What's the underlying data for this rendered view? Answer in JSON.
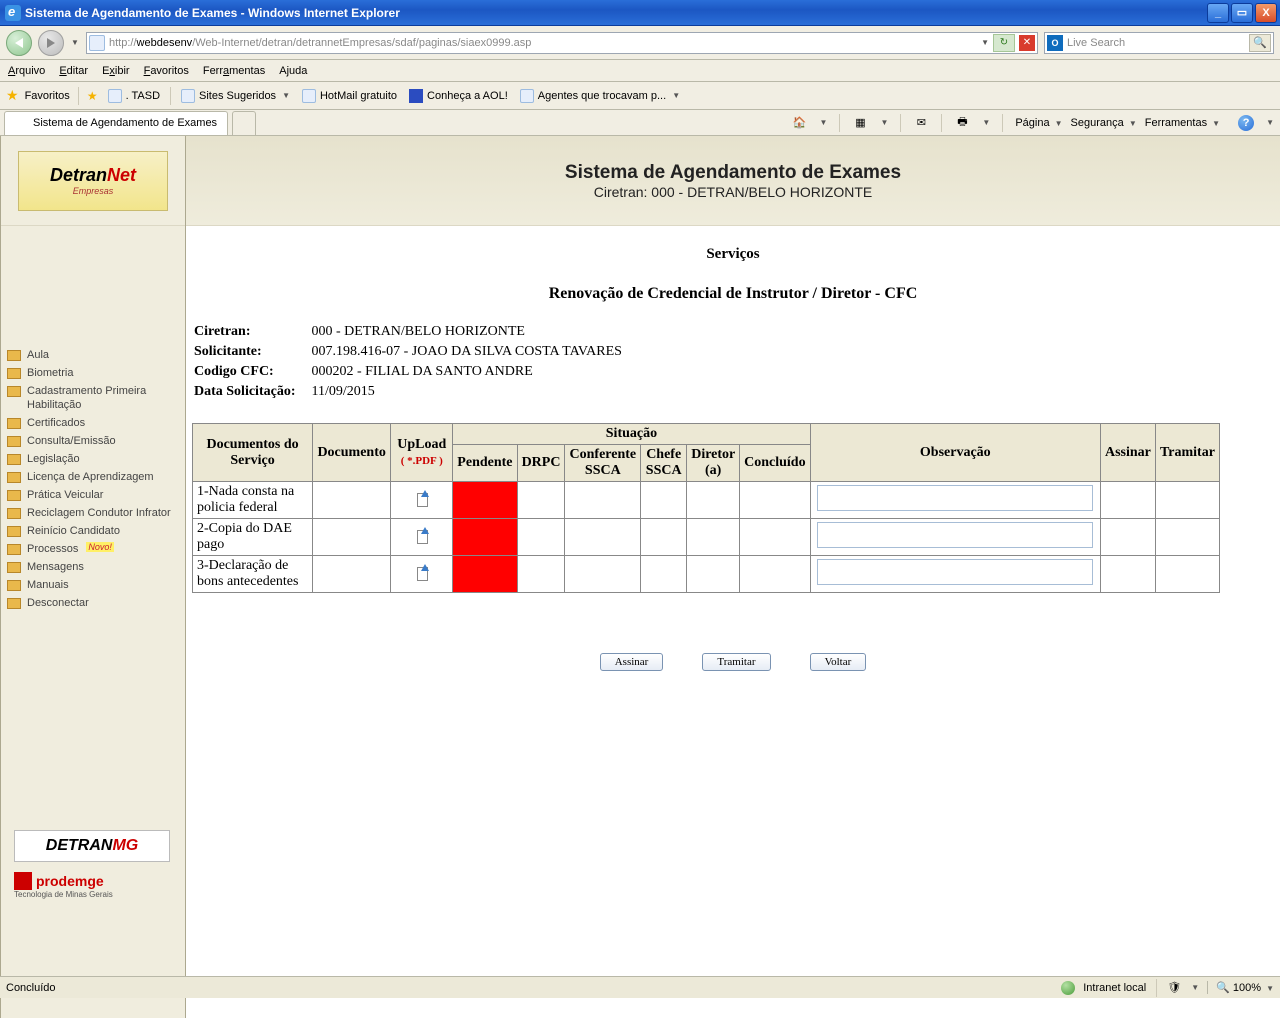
{
  "window": {
    "title": "Sistema de Agendamento de Exames - Windows Internet Explorer",
    "url_host": "webdesenv",
    "url_rest": "/Web-Internet/detran/detrannetEmpresas/sdaf/paginas/siaex0999.asp",
    "url_scheme": "http://",
    "search_placeholder": "Live Search"
  },
  "menubar": [
    "Arquivo",
    "Editar",
    "Exibir",
    "Favoritos",
    "Ferramentas",
    "Ajuda"
  ],
  "menubar_hotkey_index": [
    0,
    0,
    1,
    0,
    4,
    1
  ],
  "fav_label": "Favoritos",
  "fav_links": [
    ". TASD",
    "Sites Sugeridos",
    "HotMail gratuito",
    "Conheça a AOL!",
    "Agentes que trocavam p..."
  ],
  "fav_link_dropdown": [
    false,
    true,
    false,
    false,
    true
  ],
  "tab_title": "Sistema de Agendamento de Exames",
  "tab_tools": [
    "Página",
    "Segurança",
    "Ferramentas"
  ],
  "sidebar": {
    "items": [
      {
        "label": "Aula"
      },
      {
        "label": "Biometria"
      },
      {
        "label": "Cadastramento Primeira Habilitação"
      },
      {
        "label": "Certificados"
      },
      {
        "label": "Consulta/Emissão"
      },
      {
        "label": "Legislação"
      },
      {
        "label": "Licença de Aprendizagem"
      },
      {
        "label": "Prática Veicular"
      },
      {
        "label": "Reciclagem Condutor Infrator"
      },
      {
        "label": "Reinício Candidato"
      },
      {
        "label": "Processos",
        "novo": true
      },
      {
        "label": "Mensagens"
      },
      {
        "label": "Manuais"
      },
      {
        "label": "Desconectar"
      }
    ]
  },
  "banner": {
    "title": "Sistema de Agendamento de Exames",
    "sub": "Ciretran: 000 - DETRAN/BELO HORIZONTE"
  },
  "headings": {
    "servicos": "Serviços",
    "subtitle": "Renovação de Credencial de Instrutor / Diretor - CFC"
  },
  "meta": {
    "ciretran_k": "Ciretran:",
    "ciretran_v": "000 - DETRAN/BELO HORIZONTE",
    "solic_k": "Solicitante:",
    "solic_v": "007.198.416-07 - JOAO DA SILVA COSTA TAVARES",
    "cfc_k": "Codigo CFC:",
    "cfc_v": "000202 - FILIAL DA SANTO ANDRE",
    "data_k": "Data Solicitação:",
    "data_v": "11/09/2015"
  },
  "grid": {
    "headers": {
      "docs": "Documentos do Serviço",
      "documento": "Documento",
      "upload": "UpLoad",
      "upload_sub": "( *.PDF )",
      "situacao": "Situação",
      "pendente": "Pendente",
      "drpc": "DRPC",
      "conf": "Conferente SSCA",
      "chefe": "Chefe SSCA",
      "diretor": "Diretor (a)",
      "concl": "Concluído",
      "obs": "Observação",
      "assinar": "Assinar",
      "tramitar": "Tramitar"
    },
    "rows": [
      {
        "doc": "1-Nada consta na policia federal"
      },
      {
        "doc": "2-Copia do DAE pago"
      },
      {
        "doc": "3-Declaração de bons antecedentes"
      }
    ],
    "situacao_pendente_color": "#ff0000"
  },
  "buttons": {
    "assinar": "Assinar",
    "tramitar": "Tramitar",
    "voltar": "Voltar"
  },
  "status": {
    "text": "Concluído",
    "zone": "Intranet local",
    "zoom": "100%"
  },
  "novo_label": "Novo!",
  "logos": {
    "detran": "DETRAN",
    "mg": "MG",
    "prodemge": "prodemge",
    "prodemge_sub": "Tecnologia de Minas Gerais",
    "brand": "Detran",
    "brand_net": "Net",
    "brand_sub": "Empresas"
  }
}
